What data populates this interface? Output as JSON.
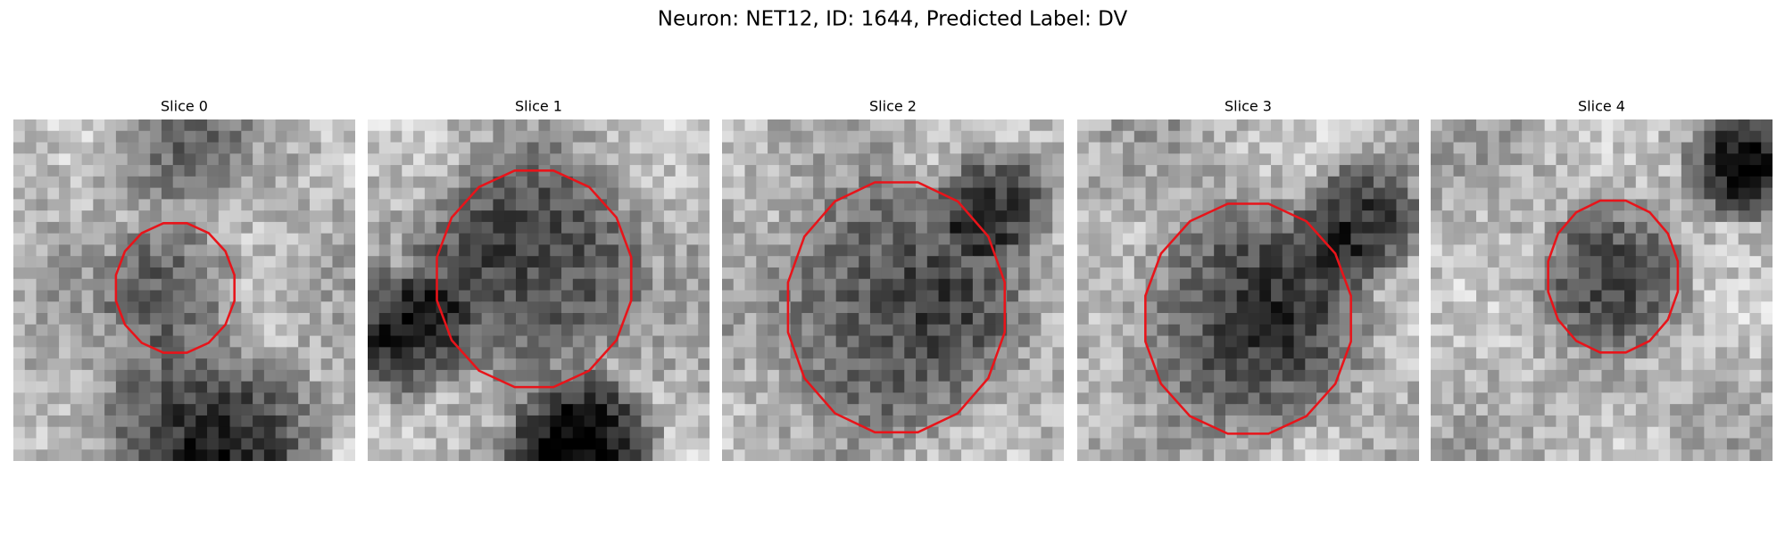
{
  "title": "Neuron: NET12, ID: 1644, Predicted Label: DV",
  "panels": [
    {
      "title": "Slice 0"
    },
    {
      "title": "Slice 1"
    },
    {
      "title": "Slice 2"
    },
    {
      "title": "Slice 3"
    },
    {
      "title": "Slice 4"
    }
  ]
}
